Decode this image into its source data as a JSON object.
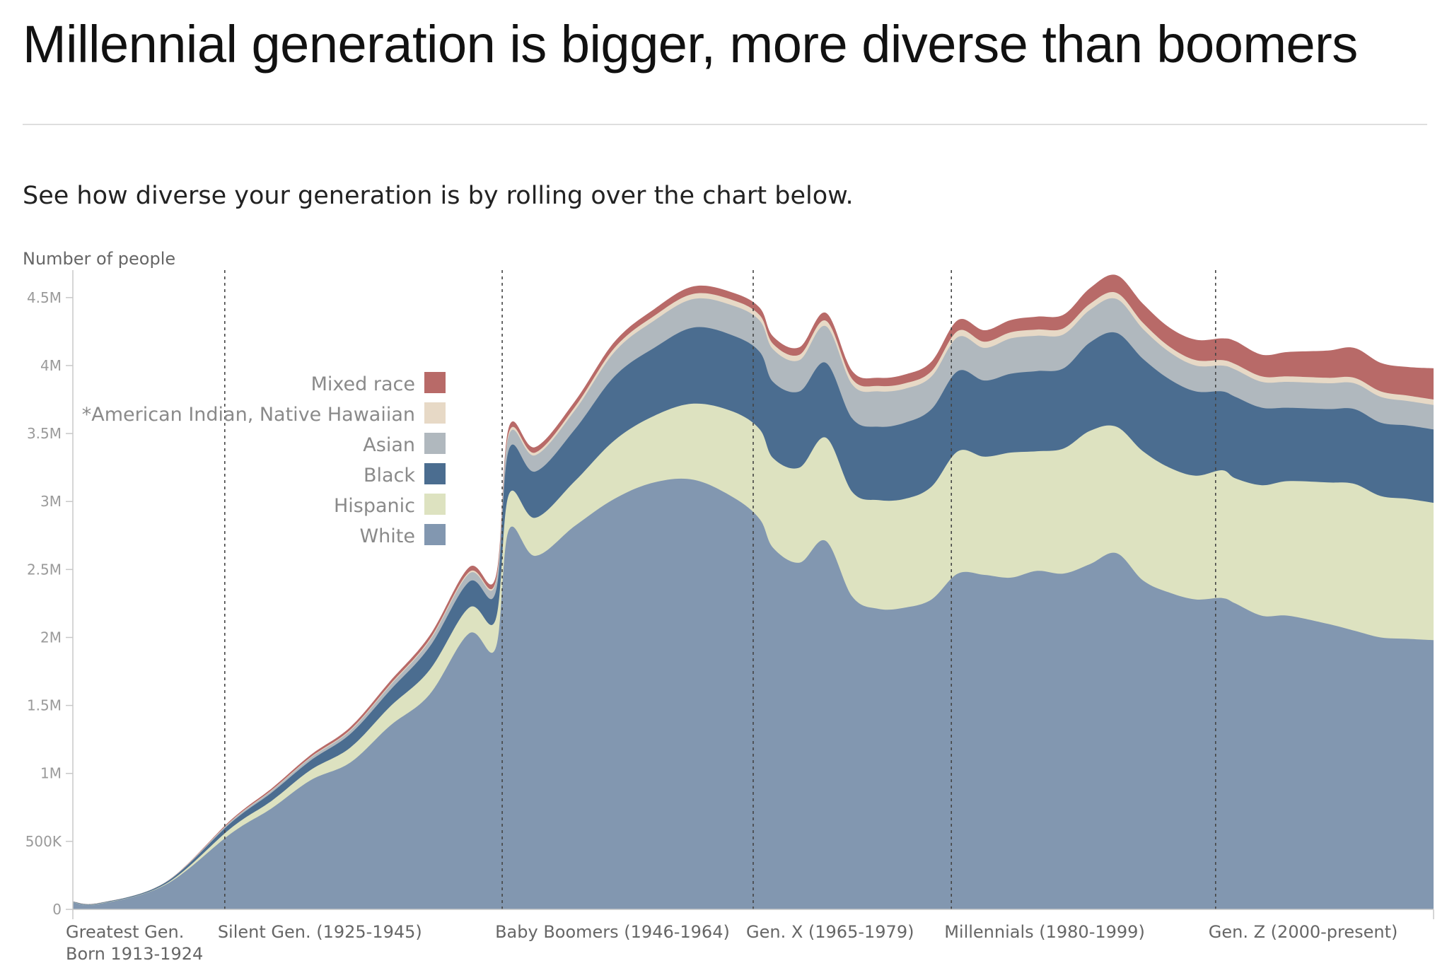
{
  "title": "Millennial generation is bigger, more diverse than boomers",
  "subtitle": "See how diverse your generation is by rolling over the chart below.",
  "chart_data": {
    "type": "area",
    "stacked": true,
    "ylabel": "Number of people",
    "ylim": [
      0,
      4650000
    ],
    "yticks": [
      {
        "value": 0,
        "label": "0"
      },
      {
        "value": 500000,
        "label": "500K"
      },
      {
        "value": 1000000,
        "label": "1M"
      },
      {
        "value": 1500000,
        "label": "1.5M"
      },
      {
        "value": 2000000,
        "label": "2M"
      },
      {
        "value": 2500000,
        "label": "2.5M"
      },
      {
        "value": 3000000,
        "label": "3M"
      },
      {
        "value": 3500000,
        "label": "3.5M"
      },
      {
        "value": 4000000,
        "label": "4M"
      },
      {
        "value": 4500000,
        "label": "4.5M"
      }
    ],
    "xlim": [
      1913,
      2016
    ],
    "x": [
      1913,
      1915,
      1920,
      1925,
      1928,
      1931,
      1934,
      1937,
      1940,
      1943,
      1945,
      1946,
      1948,
      1951,
      1954,
      1957,
      1960,
      1963,
      1965,
      1966,
      1968,
      1970,
      1972,
      1974,
      1976,
      1978,
      1980,
      1982,
      1984,
      1986,
      1988,
      1990,
      1992,
      1994,
      1996,
      1998,
      2000,
      2001,
      2003,
      2005,
      2008,
      2010,
      2012,
      2014,
      2016
    ],
    "generations": [
      {
        "label": "Greatest Gen.",
        "label2": "Born 1913-1924",
        "start": 1913
      },
      {
        "label": "Silent Gen. (1925-1945)",
        "start": 1925
      },
      {
        "label": "Baby Boomers (1946-1964)",
        "start": 1946
      },
      {
        "label": "Gen. X (1965-1979)",
        "start": 1965
      },
      {
        "label": "Millennials (1980-1999)",
        "start": 1980
      },
      {
        "label": "Gen. Z (2000-present)",
        "start": 2000
      }
    ],
    "legend_position": "left, inside plot",
    "series": [
      {
        "name": "White",
        "color": "#8297b0",
        "values": [
          50000,
          40000,
          180000,
          560000,
          740000,
          950000,
          1080000,
          1350000,
          1580000,
          2030000,
          1920000,
          2790000,
          2600000,
          2820000,
          3020000,
          3140000,
          3160000,
          3030000,
          2870000,
          2660000,
          2550000,
          2710000,
          2300000,
          2210000,
          2220000,
          2280000,
          2470000,
          2460000,
          2440000,
          2490000,
          2470000,
          2540000,
          2620000,
          2420000,
          2330000,
          2280000,
          2290000,
          2250000,
          2160000,
          2160000,
          2100000,
          2050000,
          2000000,
          1990000,
          1980000
        ]
      },
      {
        "name": "Hispanic",
        "color": "#dde2c0",
        "values": [
          2000,
          2000,
          6000,
          40000,
          55000,
          75000,
          110000,
          140000,
          180000,
          190000,
          210000,
          260000,
          280000,
          330000,
          430000,
          490000,
          560000,
          630000,
          660000,
          660000,
          700000,
          760000,
          770000,
          800000,
          800000,
          830000,
          900000,
          870000,
          920000,
          880000,
          920000,
          980000,
          930000,
          950000,
          920000,
          910000,
          940000,
          920000,
          960000,
          990000,
          1040000,
          1080000,
          1040000,
          1030000,
          1010000
        ]
      },
      {
        "name": "Black",
        "color": "#4b6d90",
        "values": [
          4000,
          4000,
          10000,
          40000,
          60000,
          70000,
          100000,
          120000,
          170000,
          190000,
          200000,
          330000,
          340000,
          380000,
          470000,
          500000,
          560000,
          560000,
          570000,
          560000,
          560000,
          550000,
          540000,
          540000,
          560000,
          570000,
          590000,
          560000,
          580000,
          590000,
          590000,
          650000,
          690000,
          680000,
          650000,
          620000,
          580000,
          600000,
          570000,
          540000,
          540000,
          550000,
          540000,
          540000,
          540000
        ]
      },
      {
        "name": "Asian",
        "color": "#b0b8be",
        "values": [
          1000,
          1000,
          2000,
          10000,
          15000,
          20000,
          25000,
          35000,
          45000,
          60000,
          65000,
          105000,
          120000,
          140000,
          180000,
          200000,
          210000,
          220000,
          230000,
          240000,
          230000,
          270000,
          250000,
          260000,
          250000,
          240000,
          250000,
          240000,
          260000,
          260000,
          250000,
          240000,
          250000,
          220000,
          200000,
          190000,
          190000,
          200000,
          190000,
          190000,
          190000,
          190000,
          190000,
          180000,
          180000
        ]
      },
      {
        "name": "*American Indian, Native Hawaiian",
        "color": "#e7d9c6",
        "values": [
          300,
          300,
          500,
          3000,
          4000,
          5000,
          6000,
          8000,
          10000,
          12000,
          12000,
          20000,
          20000,
          25000,
          30000,
          35000,
          38000,
          40000,
          40000,
          40000,
          40000,
          40000,
          40000,
          40000,
          40000,
          40000,
          45000,
          45000,
          45000,
          45000,
          45000,
          45000,
          45000,
          45000,
          40000,
          40000,
          40000,
          40000,
          40000,
          40000,
          40000,
          40000,
          40000,
          40000,
          40000
        ]
      },
      {
        "name": "Mixed race",
        "color": "#b86a68",
        "values": [
          500,
          500,
          1000,
          8000,
          12000,
          16000,
          20000,
          24000,
          28000,
          35000,
          35000,
          40000,
          40000,
          42000,
          45000,
          50000,
          55000,
          55000,
          55000,
          55000,
          55000,
          58000,
          60000,
          60000,
          65000,
          70000,
          80000,
          85000,
          90000,
          95000,
          100000,
          115000,
          130000,
          140000,
          140000,
          150000,
          160000,
          170000,
          160000,
          180000,
          200000,
          220000,
          210000,
          210000,
          230000
        ]
      }
    ]
  }
}
